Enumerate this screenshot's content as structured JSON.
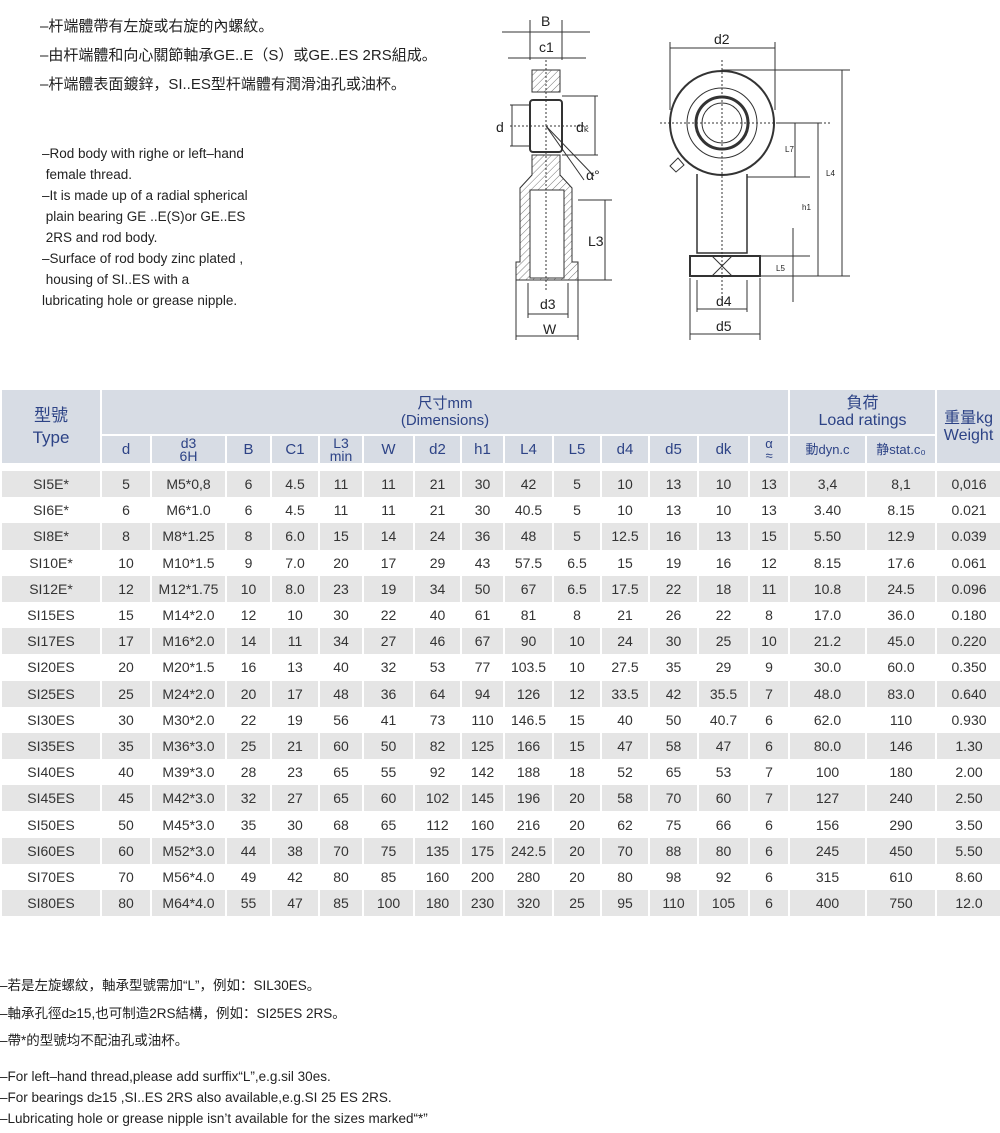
{
  "intro_cn": [
    "–杆端體帶有左旋或右旋的內螺紋。",
    "–由杆端體和向心關節軸承GE..E（S）或GE..ES 2RS組成。",
    "–杆端體表面鍍鋅，SI..ES型杆端體有潤滑油孔或油杯。"
  ],
  "intro_en": [
    "–Rod body with righe or left–hand",
    " female thread.",
    "–It is made up of a radial spherical",
    " plain bearing GE ..E(S)or GE..ES",
    " 2RS and rod body.",
    "–Surface of rod body zinc plated ,",
    " housing of SI..ES with a",
    "lubricating hole or grease nipple."
  ],
  "drawing_labels": {
    "B": "B",
    "c1": "c1",
    "d": "d",
    "dk": "dₖ",
    "alpha": "α°",
    "L3": "L3",
    "d3": "d3",
    "W": "W",
    "d2": "d2",
    "L7": "L7",
    "L4": "L4",
    "h1": "h1",
    "L5": "L5",
    "d4": "d4",
    "d5": "d5"
  },
  "table": {
    "header": {
      "type_cn": "型號",
      "type_en": "Type",
      "dims_cn": "尺寸mm",
      "dims_en": "(Dimensions)",
      "load_cn": "負荷",
      "load_en": "Load ratings",
      "weight_cn": "重量kg",
      "weight_en": "Weight",
      "columns": [
        "d",
        "d3",
        "6H",
        "B",
        "C1",
        "L3",
        "min",
        "W",
        "d2",
        "h1",
        "L4",
        "L5",
        "d4",
        "d5",
        "dk",
        "α",
        "≈",
        "動dyn.c",
        "静stat.c₀"
      ]
    },
    "rows": [
      [
        "SI5E*",
        "5",
        "M5*0,8",
        "6",
        "4.5",
        "11",
        "11",
        "21",
        "30",
        "42",
        "5",
        "10",
        "13",
        "10",
        "13",
        "3,4",
        "8,1",
        "0,016"
      ],
      [
        "SI6E*",
        "6",
        "M6*1.0",
        "6",
        "4.5",
        "11",
        "11",
        "21",
        "30",
        "40.5",
        "5",
        "10",
        "13",
        "10",
        "13",
        "3.40",
        "8.15",
        "0.021"
      ],
      [
        "SI8E*",
        "8",
        "M8*1.25",
        "8",
        "6.0",
        "15",
        "14",
        "24",
        "36",
        "48",
        "5",
        "12.5",
        "16",
        "13",
        "15",
        "5.50",
        "12.9",
        "0.039"
      ],
      [
        "SI10E*",
        "10",
        "M10*1.5",
        "9",
        "7.0",
        "20",
        "17",
        "29",
        "43",
        "57.5",
        "6.5",
        "15",
        "19",
        "16",
        "12",
        "8.15",
        "17.6",
        "0.061"
      ],
      [
        "SI12E*",
        "12",
        "M12*1.75",
        "10",
        "8.0",
        "23",
        "19",
        "34",
        "50",
        "67",
        "6.5",
        "17.5",
        "22",
        "18",
        "11",
        "10.8",
        "24.5",
        "0.096"
      ],
      [
        "SI15ES",
        "15",
        "M14*2.0",
        "12",
        "10",
        "30",
        "22",
        "40",
        "61",
        "81",
        "8",
        "21",
        "26",
        "22",
        "8",
        "17.0",
        "36.0",
        "0.180"
      ],
      [
        "SI17ES",
        "17",
        "M16*2.0",
        "14",
        "11",
        "34",
        "27",
        "46",
        "67",
        "90",
        "10",
        "24",
        "30",
        "25",
        "10",
        "21.2",
        "45.0",
        "0.220"
      ],
      [
        "SI20ES",
        "20",
        "M20*1.5",
        "16",
        "13",
        "40",
        "32",
        "53",
        "77",
        "103.5",
        "10",
        "27.5",
        "35",
        "29",
        "9",
        "30.0",
        "60.0",
        "0.350"
      ],
      [
        "SI25ES",
        "25",
        "M24*2.0",
        "20",
        "17",
        "48",
        "36",
        "64",
        "94",
        "126",
        "12",
        "33.5",
        "42",
        "35.5",
        "7",
        "48.0",
        "83.0",
        "0.640"
      ],
      [
        "SI30ES",
        "30",
        "M30*2.0",
        "22",
        "19",
        "56",
        "41",
        "73",
        "110",
        "146.5",
        "15",
        "40",
        "50",
        "40.7",
        "6",
        "62.0",
        "110",
        "0.930"
      ],
      [
        "SI35ES",
        "35",
        "M36*3.0",
        "25",
        "21",
        "60",
        "50",
        "82",
        "125",
        "166",
        "15",
        "47",
        "58",
        "47",
        "6",
        "80.0",
        "146",
        "1.30"
      ],
      [
        "SI40ES",
        "40",
        "M39*3.0",
        "28",
        "23",
        "65",
        "55",
        "92",
        "142",
        "188",
        "18",
        "52",
        "65",
        "53",
        "7",
        "100",
        "180",
        "2.00"
      ],
      [
        "SI45ES",
        "45",
        "M42*3.0",
        "32",
        "27",
        "65",
        "60",
        "102",
        "145",
        "196",
        "20",
        "58",
        "70",
        "60",
        "7",
        "127",
        "240",
        "2.50"
      ],
      [
        "SI50ES",
        "50",
        "M45*3.0",
        "35",
        "30",
        "68",
        "65",
        "112",
        "160",
        "216",
        "20",
        "62",
        "75",
        "66",
        "6",
        "156",
        "290",
        "3.50"
      ],
      [
        "SI60ES",
        "60",
        "M52*3.0",
        "44",
        "38",
        "70",
        "75",
        "135",
        "175",
        "242.5",
        "20",
        "70",
        "88",
        "80",
        "6",
        "245",
        "450",
        "5.50"
      ],
      [
        "SI70ES",
        "70",
        "M56*4.0",
        "49",
        "42",
        "80",
        "85",
        "160",
        "200",
        "280",
        "20",
        "80",
        "98",
        "92",
        "6",
        "315",
        "610",
        "8.60"
      ],
      [
        "SI80ES",
        "80",
        "M64*4.0",
        "55",
        "47",
        "85",
        "100",
        "180",
        "230",
        "320",
        "25",
        "95",
        "110",
        "105",
        "6",
        "400",
        "750",
        "12.0"
      ]
    ]
  },
  "notes_cn": [
    "–若是左旋螺紋，軸承型號需加“L”，例如：SIL30ES。",
    "–軸承孔徑d≥15,也可制造2RS結構，例如：SI25ES 2RS。",
    "–帶*的型號均不配油孔或油杯。"
  ],
  "notes_en": [
    "–For left–hand thread,please add surffix“L”,e.g.sil 30es.",
    "–For bearings d≥15 ,SI..ES 2RS also available,e.g.SI 25 ES 2RS.",
    "–Lubricating hole or grease nipple isn’t available for the sizes marked“*”"
  ],
  "colors": {
    "header_bg": "#d7dce4",
    "header_text": "#2d4386",
    "stripe": "#e5e5e5"
  }
}
